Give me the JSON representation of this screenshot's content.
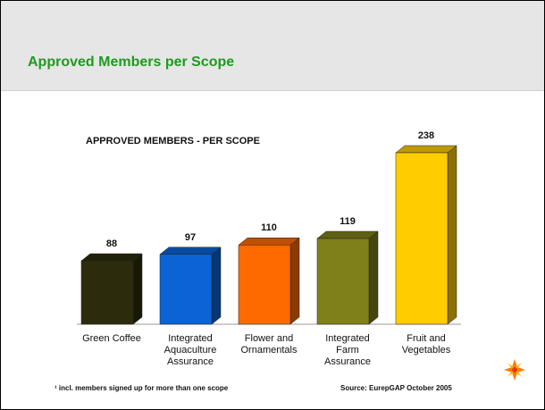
{
  "header": {
    "title": "Approved Members per Scope"
  },
  "chart_data": {
    "type": "bar3d",
    "title": "APPROVED MEMBERS - PER SCOPE",
    "categories": [
      "Green Coffee",
      "Integrated Aquaculture Assurance",
      "Flower and Ornamentals",
      "Integrated Farm Assurance",
      "Fruit and Vegetables"
    ],
    "values": [
      88,
      97,
      110,
      119,
      238
    ],
    "colors": [
      "#2c2c0c",
      "#0b63d6",
      "#ff6a00",
      "#80801a",
      "#ffcc00"
    ]
  },
  "footer": {
    "note": "¹ incl. members signed up for more than one scope",
    "source": "Source: EurepGAP October 2005"
  }
}
